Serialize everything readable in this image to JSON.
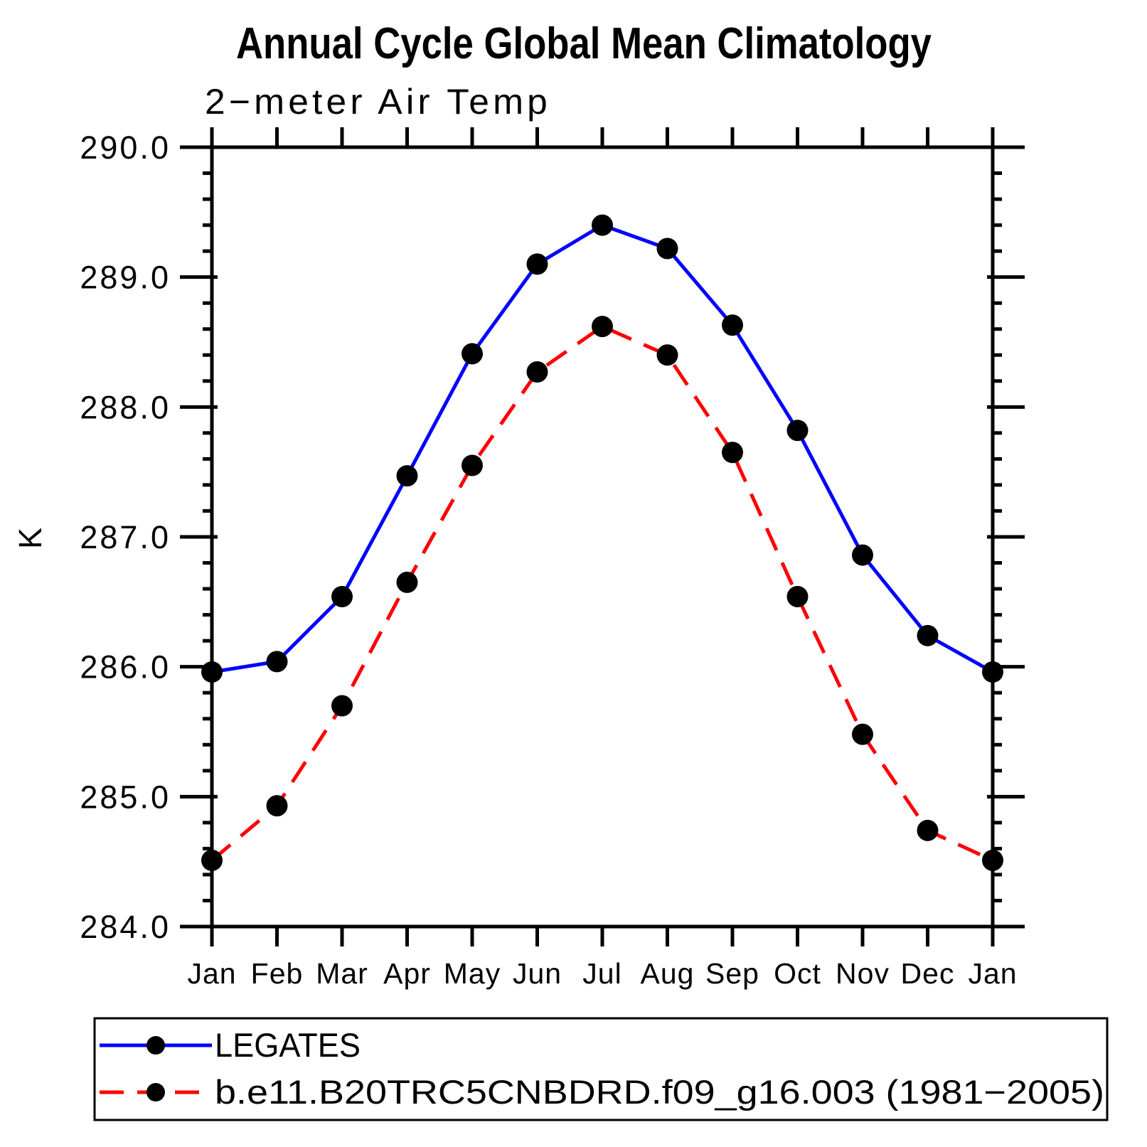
{
  "chart_data": {
    "type": "line",
    "title": "Annual Cycle Global Mean Climatology",
    "subtitle": "2−meter Air Temp",
    "ylabel": "K",
    "categories": [
      "Jan",
      "Feb",
      "Mar",
      "Apr",
      "May",
      "Jun",
      "Jul",
      "Aug",
      "Sep",
      "Oct",
      "Nov",
      "Dec",
      "Jan"
    ],
    "ylim": [
      284.0,
      290.0
    ],
    "ytick_interval": 1.0,
    "yminor_interval": 0.2,
    "ytick_decimals": 1,
    "grid": false,
    "legend_position": "bottom-left-box",
    "axis_color": "#000000",
    "marker_shape": "filled-circle",
    "series": [
      {
        "name": "LEGATES",
        "color": "#0000ff",
        "line_style": "solid",
        "marker_color": "#000000",
        "values": [
          285.96,
          286.04,
          286.54,
          287.47,
          288.41,
          289.1,
          289.4,
          289.22,
          288.63,
          287.82,
          286.86,
          286.24,
          285.96
        ]
      },
      {
        "name": "b.e11.B20TRC5CNBDRD.f09_g16.003 (1981−2005)",
        "color": "#ff0000",
        "line_style": "dashed",
        "marker_color": "#000000",
        "values": [
          284.51,
          284.93,
          285.7,
          286.65,
          287.55,
          288.27,
          288.62,
          288.4,
          287.65,
          286.54,
          285.48,
          284.74,
          284.51
        ]
      }
    ]
  }
}
